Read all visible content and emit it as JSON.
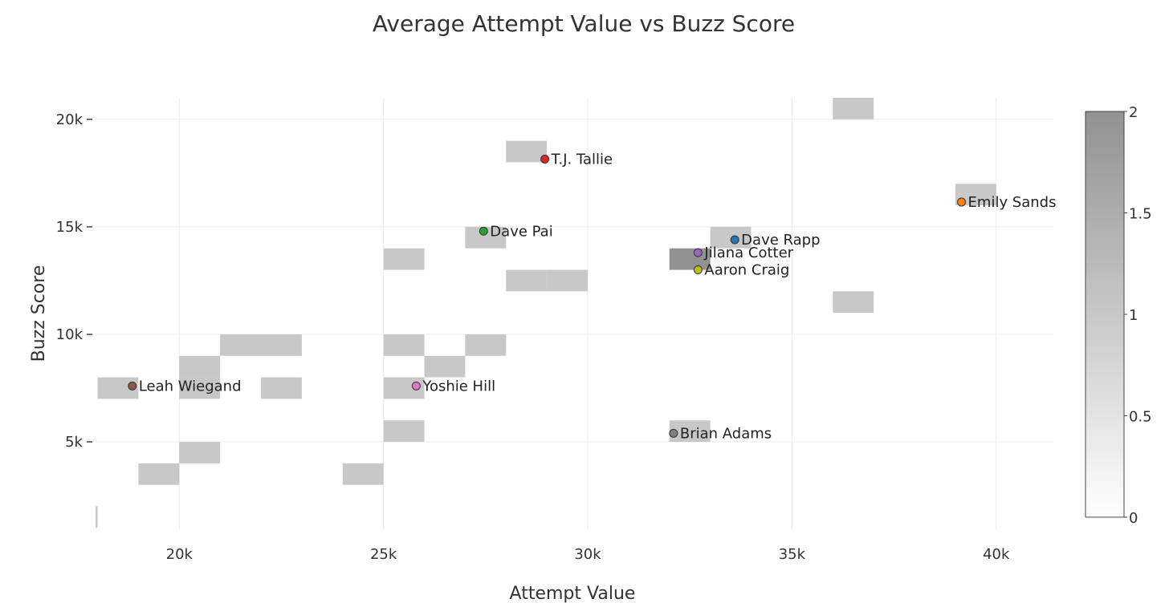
{
  "chart_data": {
    "type": "heatmap",
    "title": "Average Attempt Value vs Buzz Score",
    "xlabel": "Attempt Value",
    "ylabel": "Buzz Score",
    "xlim": [
      17950,
      41400
    ],
    "ylim": [
      900,
      21000
    ],
    "x_ticks": [
      {
        "value": 20000,
        "label": "20k"
      },
      {
        "value": 25000,
        "label": "25k"
      },
      {
        "value": 30000,
        "label": "30k"
      },
      {
        "value": 35000,
        "label": "35k"
      },
      {
        "value": 40000,
        "label": "40k"
      }
    ],
    "y_ticks": [
      {
        "value": 5000,
        "label": "5k"
      },
      {
        "value": 10000,
        "label": "10k"
      },
      {
        "value": 15000,
        "label": "15k"
      },
      {
        "value": 20000,
        "label": "20k"
      }
    ],
    "grid": true,
    "heatmap": {
      "x_bin_size": 1000,
      "y_bin_size": 1000,
      "cells": [
        {
          "x": 36000,
          "y": 20000,
          "count": 1
        },
        {
          "x": 28000,
          "y": 18000,
          "count": 1
        },
        {
          "x": 39000,
          "y": 16000,
          "count": 1
        },
        {
          "x": 27000,
          "y": 14000,
          "count": 1
        },
        {
          "x": 33000,
          "y": 14000,
          "count": 1
        },
        {
          "x": 25000,
          "y": 13000,
          "count": 1
        },
        {
          "x": 32000,
          "y": 13000,
          "count": 2
        },
        {
          "x": 28000,
          "y": 12000,
          "count": 1
        },
        {
          "x": 29000,
          "y": 12000,
          "count": 1
        },
        {
          "x": 36000,
          "y": 11000,
          "count": 1
        },
        {
          "x": 21000,
          "y": 9000,
          "count": 1
        },
        {
          "x": 22000,
          "y": 9000,
          "count": 1
        },
        {
          "x": 25000,
          "y": 9000,
          "count": 1
        },
        {
          "x": 27000,
          "y": 9000,
          "count": 1
        },
        {
          "x": 20000,
          "y": 8000,
          "count": 1
        },
        {
          "x": 26000,
          "y": 8000,
          "count": 1
        },
        {
          "x": 18000,
          "y": 7000,
          "count": 1
        },
        {
          "x": 20000,
          "y": 7000,
          "count": 1
        },
        {
          "x": 22000,
          "y": 7000,
          "count": 1
        },
        {
          "x": 25000,
          "y": 7000,
          "count": 1
        },
        {
          "x": 25000,
          "y": 5000,
          "count": 1
        },
        {
          "x": 32000,
          "y": 5000,
          "count": 1
        },
        {
          "x": 20000,
          "y": 4000,
          "count": 1
        },
        {
          "x": 19000,
          "y": 3000,
          "count": 1
        },
        {
          "x": 24000,
          "y": 3000,
          "count": 1
        },
        {
          "x": 17000,
          "y": 1000,
          "count": 1
        }
      ]
    },
    "colorbar": {
      "range": [
        0,
        2
      ],
      "ticks": [
        {
          "value": 0,
          "label": "0"
        },
        {
          "value": 0.5,
          "label": "0.5"
        },
        {
          "value": 1,
          "label": "1"
        },
        {
          "value": 1.5,
          "label": "1.5"
        },
        {
          "value": 2,
          "label": "2"
        }
      ],
      "colors": [
        "#ffffff",
        "#919191"
      ]
    },
    "points": [
      {
        "label": "T.J. Tallie",
        "x": 28950,
        "y": 18150,
        "color": "#d62728"
      },
      {
        "label": "Emily Sands",
        "x": 39150,
        "y": 16150,
        "color": "#ff7f0e"
      },
      {
        "label": "Dave Pai",
        "x": 27450,
        "y": 14800,
        "color": "#2ca02c"
      },
      {
        "label": "Dave Rapp",
        "x": 33600,
        "y": 14400,
        "color": "#1f77b4"
      },
      {
        "label": "Jilana Cotter",
        "x": 32700,
        "y": 13800,
        "color": "#9467bd"
      },
      {
        "label": "Aaron Craig",
        "x": 32700,
        "y": 13000,
        "color": "#bcbd22"
      },
      {
        "label": "Leah Wiegand",
        "x": 18850,
        "y": 7600,
        "color": "#8c564b"
      },
      {
        "label": "Yoshie Hill",
        "x": 25800,
        "y": 7600,
        "color": "#e377c2"
      },
      {
        "label": "Brian Adams",
        "x": 32100,
        "y": 5400,
        "color": "#7f7f7f"
      }
    ]
  }
}
